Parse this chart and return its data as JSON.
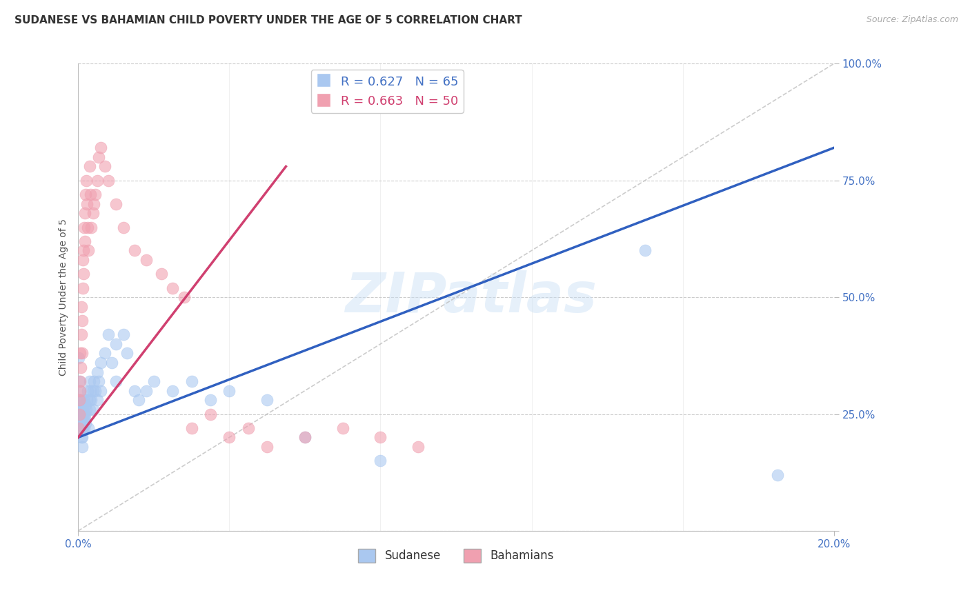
{
  "title": "SUDANESE VS BAHAMIAN CHILD POVERTY UNDER THE AGE OF 5 CORRELATION CHART",
  "source": "Source: ZipAtlas.com",
  "ylabel": "Child Poverty Under the Age of 5",
  "xlim": [
    0.0,
    0.2
  ],
  "ylim": [
    0.0,
    1.0
  ],
  "yticks": [
    0.0,
    0.25,
    0.5,
    0.75,
    1.0
  ],
  "ytick_labels": [
    "",
    "25.0%",
    "50.0%",
    "75.0%",
    "100.0%"
  ],
  "xtick_positions": [
    0.0,
    0.2
  ],
  "xtick_labels": [
    "0.0%",
    "20.0%"
  ],
  "background_color": "#ffffff",
  "grid_color": "#cccccc",
  "watermark": "ZIPatlas",
  "sudanese_color": "#aac8f0",
  "bahamian_color": "#f0a0b0",
  "line_sudanese_color": "#3060c0",
  "line_bahamian_color": "#d04070",
  "R_sudanese": 0.627,
  "N_sudanese": 65,
  "R_bahamian": 0.663,
  "N_bahamian": 50,
  "sudanese_scatter": [
    [
      0.0002,
      0.37
    ],
    [
      0.0003,
      0.28
    ],
    [
      0.0004,
      0.32
    ],
    [
      0.0004,
      0.26
    ],
    [
      0.0005,
      0.3
    ],
    [
      0.0006,
      0.25
    ],
    [
      0.0006,
      0.22
    ],
    [
      0.0007,
      0.28
    ],
    [
      0.0008,
      0.24
    ],
    [
      0.0008,
      0.2
    ],
    [
      0.0009,
      0.26
    ],
    [
      0.001,
      0.22
    ],
    [
      0.001,
      0.2
    ],
    [
      0.001,
      0.18
    ],
    [
      0.001,
      0.24
    ],
    [
      0.0012,
      0.23
    ],
    [
      0.0012,
      0.27
    ],
    [
      0.0013,
      0.22
    ],
    [
      0.0013,
      0.26
    ],
    [
      0.0014,
      0.25
    ],
    [
      0.0015,
      0.24
    ],
    [
      0.0015,
      0.28
    ],
    [
      0.0016,
      0.22
    ],
    [
      0.0017,
      0.25
    ],
    [
      0.0018,
      0.24
    ],
    [
      0.002,
      0.23
    ],
    [
      0.002,
      0.27
    ],
    [
      0.0022,
      0.26
    ],
    [
      0.0023,
      0.28
    ],
    [
      0.0025,
      0.3
    ],
    [
      0.0027,
      0.22
    ],
    [
      0.003,
      0.28
    ],
    [
      0.003,
      0.32
    ],
    [
      0.003,
      0.26
    ],
    [
      0.0032,
      0.3
    ],
    [
      0.0035,
      0.28
    ],
    [
      0.004,
      0.3
    ],
    [
      0.004,
      0.26
    ],
    [
      0.0042,
      0.32
    ],
    [
      0.0045,
      0.3
    ],
    [
      0.005,
      0.34
    ],
    [
      0.005,
      0.28
    ],
    [
      0.0055,
      0.32
    ],
    [
      0.006,
      0.36
    ],
    [
      0.006,
      0.3
    ],
    [
      0.007,
      0.38
    ],
    [
      0.008,
      0.42
    ],
    [
      0.009,
      0.36
    ],
    [
      0.01,
      0.4
    ],
    [
      0.01,
      0.32
    ],
    [
      0.012,
      0.42
    ],
    [
      0.013,
      0.38
    ],
    [
      0.015,
      0.3
    ],
    [
      0.016,
      0.28
    ],
    [
      0.018,
      0.3
    ],
    [
      0.02,
      0.32
    ],
    [
      0.025,
      0.3
    ],
    [
      0.03,
      0.32
    ],
    [
      0.035,
      0.28
    ],
    [
      0.04,
      0.3
    ],
    [
      0.05,
      0.28
    ],
    [
      0.06,
      0.2
    ],
    [
      0.08,
      0.15
    ],
    [
      0.15,
      0.6
    ],
    [
      0.185,
      0.12
    ]
  ],
  "bahamian_scatter": [
    [
      0.0002,
      0.22
    ],
    [
      0.0003,
      0.28
    ],
    [
      0.0004,
      0.25
    ],
    [
      0.0005,
      0.32
    ],
    [
      0.0006,
      0.38
    ],
    [
      0.0006,
      0.3
    ],
    [
      0.0007,
      0.35
    ],
    [
      0.0008,
      0.42
    ],
    [
      0.0009,
      0.48
    ],
    [
      0.001,
      0.45
    ],
    [
      0.001,
      0.38
    ],
    [
      0.0012,
      0.52
    ],
    [
      0.0013,
      0.58
    ],
    [
      0.0014,
      0.55
    ],
    [
      0.0015,
      0.6
    ],
    [
      0.0016,
      0.65
    ],
    [
      0.0017,
      0.62
    ],
    [
      0.0018,
      0.68
    ],
    [
      0.002,
      0.72
    ],
    [
      0.0022,
      0.75
    ],
    [
      0.0024,
      0.7
    ],
    [
      0.0025,
      0.65
    ],
    [
      0.0027,
      0.6
    ],
    [
      0.003,
      0.78
    ],
    [
      0.0032,
      0.72
    ],
    [
      0.0035,
      0.65
    ],
    [
      0.004,
      0.68
    ],
    [
      0.0042,
      0.7
    ],
    [
      0.0045,
      0.72
    ],
    [
      0.005,
      0.75
    ],
    [
      0.0055,
      0.8
    ],
    [
      0.006,
      0.82
    ],
    [
      0.007,
      0.78
    ],
    [
      0.008,
      0.75
    ],
    [
      0.01,
      0.7
    ],
    [
      0.012,
      0.65
    ],
    [
      0.015,
      0.6
    ],
    [
      0.018,
      0.58
    ],
    [
      0.022,
      0.55
    ],
    [
      0.025,
      0.52
    ],
    [
      0.028,
      0.5
    ],
    [
      0.03,
      0.22
    ],
    [
      0.035,
      0.25
    ],
    [
      0.04,
      0.2
    ],
    [
      0.045,
      0.22
    ],
    [
      0.05,
      0.18
    ],
    [
      0.06,
      0.2
    ],
    [
      0.07,
      0.22
    ],
    [
      0.08,
      0.2
    ],
    [
      0.09,
      0.18
    ]
  ],
  "blue_line_x": [
    0.0,
    0.2
  ],
  "blue_line_y": [
    0.2,
    0.82
  ],
  "pink_line_x": [
    0.0,
    0.055
  ],
  "pink_line_y": [
    0.2,
    0.78
  ],
  "ref_line_x": [
    0.0,
    0.2
  ],
  "ref_line_y": [
    0.0,
    1.0
  ],
  "title_fontsize": 11,
  "axis_label_fontsize": 10,
  "tick_fontsize": 11,
  "legend_fontsize": 13
}
